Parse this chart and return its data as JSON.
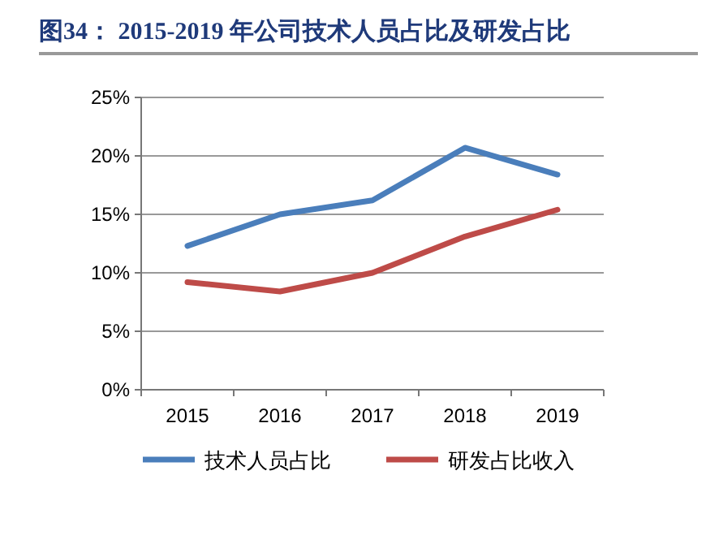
{
  "chart_data": {
    "type": "line",
    "title": "图34：  2015-2019 年公司技术人员占比及研发占比",
    "categories": [
      "2015",
      "2016",
      "2017",
      "2018",
      "2019"
    ],
    "series": [
      {
        "name": "技术人员占比",
        "color": "#4a7ebb",
        "values": [
          12.3,
          15.0,
          16.2,
          20.7,
          18.4
        ]
      },
      {
        "name": "研发占比收入",
        "color": "#be4b48",
        "values": [
          9.2,
          8.4,
          10.0,
          13.1,
          15.4
        ]
      }
    ],
    "ylim": [
      0,
      25
    ],
    "yticks": [
      {
        "value": 0,
        "label": "0%"
      },
      {
        "value": 5,
        "label": "5%"
      },
      {
        "value": 10,
        "label": "10%"
      },
      {
        "value": 15,
        "label": "15%"
      },
      {
        "value": 20,
        "label": "20%"
      },
      {
        "value": 25,
        "label": "25%"
      }
    ],
    "grid": "y",
    "legend": "bottom",
    "marker": "none",
    "line_style": "solid"
  }
}
